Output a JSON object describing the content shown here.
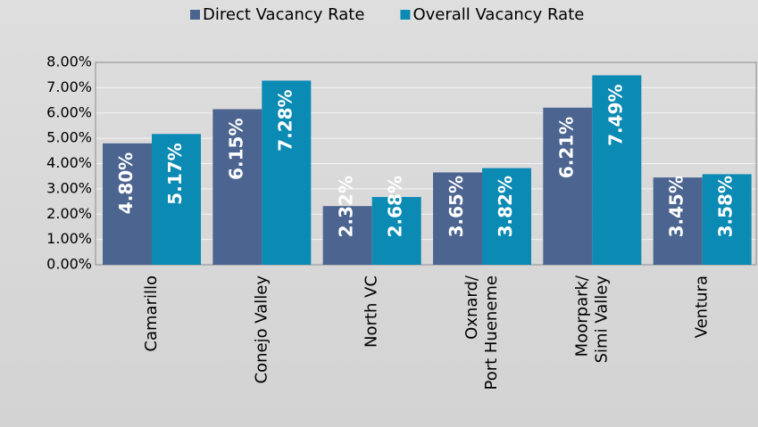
{
  "chart_data": {
    "type": "bar",
    "categories": [
      "Camarillo",
      "Conejo Valley",
      "North VC",
      "Oxnard/\nPort Hueneme",
      "Moorpark/\nSimi Valley",
      "Ventura"
    ],
    "series": [
      {
        "name": "Direct Vacancy Rate",
        "color": "#4b6590",
        "values": [
          4.8,
          6.15,
          2.32,
          3.65,
          6.21,
          3.45
        ],
        "value_labels": [
          "4.80%",
          "6.15%",
          "2.32%",
          "3.65%",
          "6.21%",
          "3.45%"
        ]
      },
      {
        "name": "Overall Vacancy Rate",
        "color": "#0b8ab3",
        "values": [
          5.17,
          7.28,
          2.68,
          3.82,
          7.49,
          3.58
        ],
        "value_labels": [
          "5.17%",
          "7.28%",
          "2.68%",
          "3.82%",
          "7.49%",
          "3.58%"
        ]
      }
    ],
    "ylim": [
      0,
      8
    ],
    "yticks": [
      {
        "value": 0,
        "label": "0.00%"
      },
      {
        "value": 1,
        "label": "1.00%"
      },
      {
        "value": 2,
        "label": "2.00%"
      },
      {
        "value": 3,
        "label": "3.00%"
      },
      {
        "value": 4,
        "label": "4.00%"
      },
      {
        "value": 5,
        "label": "5.00%"
      },
      {
        "value": 6,
        "label": "6.00%"
      },
      {
        "value": 7,
        "label": "7.00%"
      },
      {
        "value": 8,
        "label": "8.00%"
      }
    ],
    "grid": true,
    "legend": "top"
  }
}
